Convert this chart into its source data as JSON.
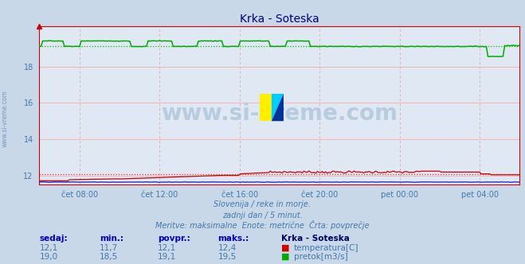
{
  "title": "Krka - Soteska",
  "bg_color": "#c8d8e8",
  "plot_bg_color": "#e0e8f4",
  "grid_color_h": "#ffb0b0",
  "grid_color_v": "#e0b0b0",
  "title_color": "#000080",
  "text_color": "#4477aa",
  "axis_color": "#cc0000",
  "ylim": [
    11.5,
    20.2
  ],
  "yticks": [
    12,
    14,
    16,
    18
  ],
  "watermark_text": "www.si-vreme.com",
  "watermark_color": "#b8cce0",
  "subtitle_lines": [
    "Slovenija / reke in morje.",
    "zadnji dan / 5 minut.",
    "Meritve: maksimalne  Enote: metrične  Črta: povprečje"
  ],
  "temp_color": "#cc0000",
  "flow_color": "#00aa00",
  "avg_temp_color": "#dd3333",
  "avg_flow_color": "#00bb00",
  "height_color": "#0000cc",
  "n_points": 288,
  "temp_avg": 12.1,
  "flow_avg": 19.1,
  "x_ticks": [
    2,
    6,
    10,
    14,
    18,
    22
  ],
  "x_labels": [
    "čet 08:00",
    "čet 12:00",
    "čet 16:00",
    "čet 20:00",
    "pet 00:00",
    "pet 04:00"
  ],
  "table_headers": [
    "sedaj:",
    "min.:",
    "povpr.:",
    "maks.:"
  ],
  "table_temp": [
    "12,1",
    "11,7",
    "12,1",
    "12,4"
  ],
  "table_flow": [
    "19,0",
    "18,5",
    "19,1",
    "19,5"
  ],
  "legend_station": "Krka - Soteska",
  "legend_temp": "temperatura[C]",
  "legend_flow": "pretok[m3/s]",
  "sidebar_text": "www.si-vreme.com"
}
